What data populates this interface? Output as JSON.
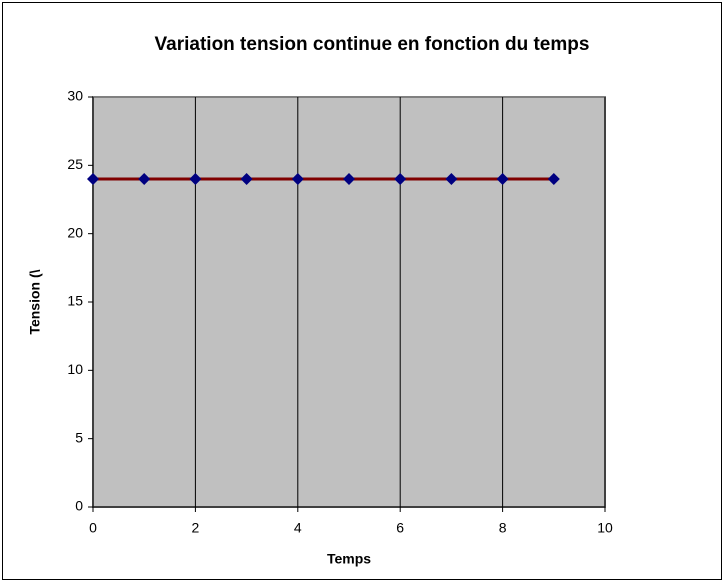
{
  "chart_data": {
    "type": "line",
    "title": "Variation tension continue en fonction du temps",
    "xlabel": "Temps",
    "ylabel": "Tension (\\",
    "x": [
      0,
      1,
      2,
      3,
      4,
      5,
      6,
      7,
      8,
      9
    ],
    "values": [
      24,
      24,
      24,
      24,
      24,
      24,
      24,
      24,
      24,
      24
    ],
    "line_color": "#800000",
    "marker_color": "#000080",
    "marker": "diamond",
    "plot_background": "#c0c0c0",
    "xgrid": true,
    "ygrid": false,
    "xlim": [
      0,
      10
    ],
    "xticks": [
      0,
      2,
      4,
      6,
      8,
      10
    ],
    "ylim": [
      0,
      30
    ],
    "yticks": [
      0,
      5,
      10,
      15,
      20,
      25,
      30
    ]
  }
}
